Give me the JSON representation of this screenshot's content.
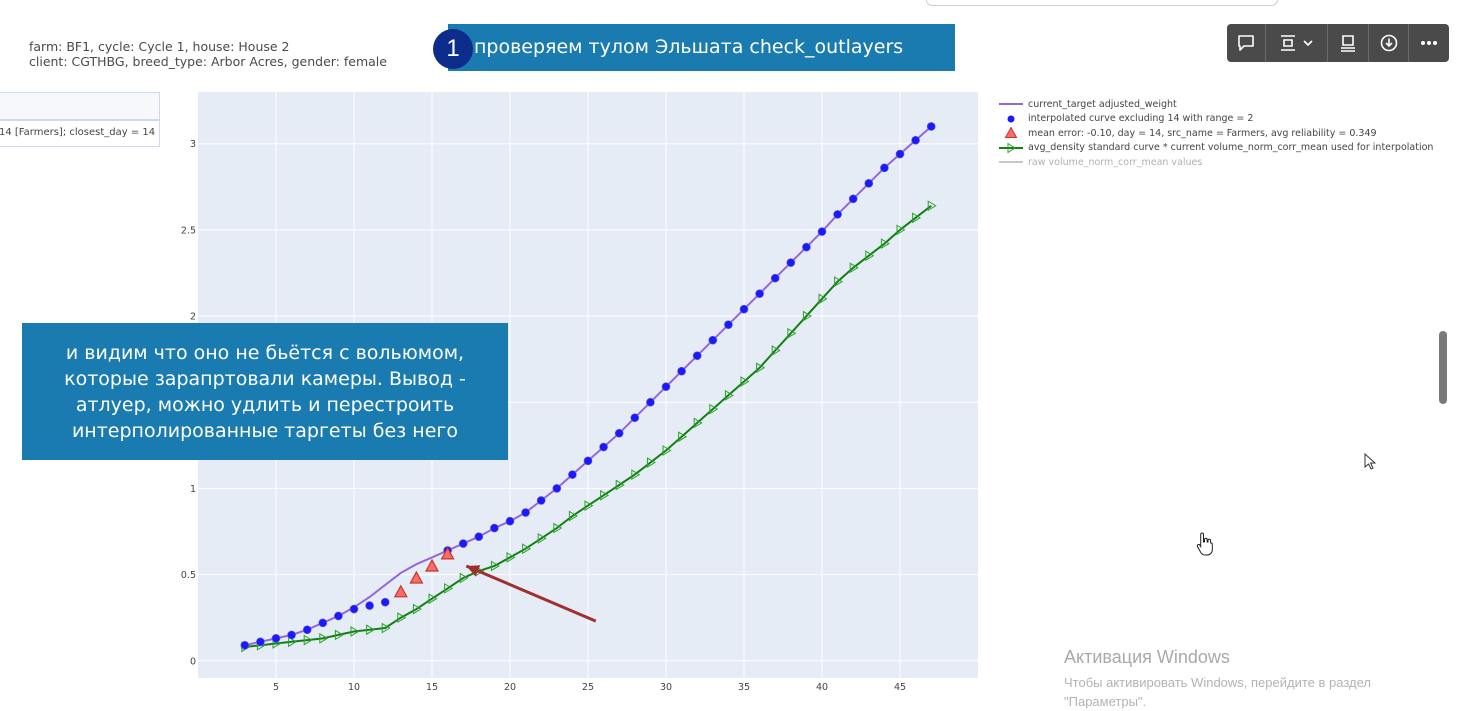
{
  "info": {
    "line1": "farm: BF1, cycle: Cycle 1, house: House 2",
    "line2": "client: CGTHBG, breed_type: Arbor Acres, gender: female"
  },
  "side_panel": {
    "box2_text": "14 [Farmers]; closest_day = 14"
  },
  "callouts": {
    "step_number": "1",
    "top_text": "проверяем тулом Эльшата check_outlayers",
    "middle_text": "и видим что оно не бьётся с вольюмом,\nкоторые зарапртовали камеры. Вывод -\nатлуер, можно удлить и перестроить\nинтерполированные таргеты без него"
  },
  "toolbar": {
    "icons": [
      "comment-icon",
      "layout-icon",
      "chevron-down-icon",
      "screen-icon",
      "download-icon",
      "more-icon"
    ]
  },
  "watermark": {
    "title": "Активация Windows",
    "text": "Чтобы активировать Windows, перейдите в раздел\n\"Параметры\"."
  },
  "colors": {
    "plot_bg": "#e5ecf6",
    "target_line": "#9467db",
    "interp_points": "#1a1aff",
    "mean_error": "#ff3b3b",
    "density_line": "#128012",
    "raw_line": "#c8c8c8",
    "callout_bg": "#1a7bb0",
    "arrow": "#a03030"
  },
  "chart_data": {
    "type": "line",
    "xlim": [
      0,
      50
    ],
    "ylim": [
      -0.1,
      3.3
    ],
    "xticks": [
      5,
      10,
      15,
      20,
      25,
      30,
      35,
      40,
      45
    ],
    "yticks": [
      0,
      0.5,
      1,
      1.5,
      2,
      2.5,
      3
    ],
    "ytick_labels": [
      "0",
      "0.5",
      "1",
      "",
      "2",
      "2.5",
      "3"
    ],
    "grid": true,
    "legend_position": "right",
    "series": [
      {
        "name": "current_target adjusted_weight",
        "kind": "line",
        "x": [
          3,
          4,
          5,
          6,
          7,
          8,
          9,
          10,
          11,
          12,
          13,
          14,
          15,
          16,
          17,
          18,
          19,
          20,
          21,
          22,
          23,
          24,
          25,
          26,
          27,
          28,
          29,
          30,
          31,
          32,
          33,
          34,
          35,
          36,
          37,
          38,
          39,
          40,
          41,
          42,
          43,
          44,
          45,
          46,
          47
        ],
        "y": [
          0.09,
          0.11,
          0.13,
          0.15,
          0.18,
          0.22,
          0.26,
          0.31,
          0.37,
          0.44,
          0.51,
          0.56,
          0.6,
          0.64,
          0.68,
          0.72,
          0.77,
          0.81,
          0.86,
          0.93,
          1.0,
          1.08,
          1.16,
          1.24,
          1.32,
          1.41,
          1.5,
          1.59,
          1.68,
          1.77,
          1.86,
          1.95,
          2.04,
          2.13,
          2.22,
          2.31,
          2.4,
          2.49,
          2.59,
          2.68,
          2.77,
          2.86,
          2.94,
          3.02,
          3.1
        ]
      },
      {
        "name": "interpolated curve excluding 14 with range = 2",
        "kind": "markers",
        "x": [
          3,
          4,
          5,
          6,
          7,
          8,
          9,
          10,
          11,
          12,
          16,
          17,
          18,
          19,
          20,
          21,
          22,
          23,
          24,
          25,
          26,
          27,
          28,
          29,
          30,
          31,
          32,
          33,
          34,
          35,
          36,
          37,
          38,
          39,
          40,
          41,
          42,
          43,
          44,
          45,
          46,
          47
        ],
        "y": [
          0.09,
          0.11,
          0.13,
          0.15,
          0.18,
          0.22,
          0.26,
          0.3,
          0.32,
          0.34,
          0.64,
          0.68,
          0.72,
          0.77,
          0.81,
          0.86,
          0.93,
          1.0,
          1.08,
          1.16,
          1.24,
          1.32,
          1.41,
          1.5,
          1.59,
          1.68,
          1.77,
          1.86,
          1.95,
          2.04,
          2.13,
          2.22,
          2.31,
          2.4,
          2.49,
          2.59,
          2.68,
          2.77,
          2.86,
          2.94,
          3.02,
          3.1
        ]
      },
      {
        "name": "mean error: -0.10, day = 14, src_name = Farmers, avg reliability = 0.349",
        "kind": "triangles",
        "x": [
          13,
          14,
          15,
          16
        ],
        "y": [
          0.4,
          0.48,
          0.55,
          0.62
        ]
      },
      {
        "name": "avg_density standard curve * current volume_norm_corr_mean used for interpolation",
        "kind": "line-triangles",
        "x": [
          3,
          4,
          5,
          6,
          7,
          8,
          9,
          10,
          11,
          12,
          13,
          14,
          15,
          16,
          17,
          18,
          19,
          20,
          21,
          22,
          23,
          24,
          25,
          26,
          27,
          28,
          29,
          30,
          31,
          32,
          33,
          34,
          35,
          36,
          37,
          38,
          39,
          40,
          41,
          42,
          43,
          44,
          45,
          46,
          47
        ],
        "y": [
          0.08,
          0.09,
          0.1,
          0.11,
          0.12,
          0.13,
          0.15,
          0.17,
          0.18,
          0.19,
          0.25,
          0.3,
          0.36,
          0.42,
          0.48,
          0.52,
          0.55,
          0.6,
          0.65,
          0.71,
          0.77,
          0.84,
          0.9,
          0.96,
          1.02,
          1.08,
          1.15,
          1.22,
          1.3,
          1.38,
          1.46,
          1.54,
          1.62,
          1.7,
          1.8,
          1.9,
          2.0,
          2.1,
          2.2,
          2.28,
          2.35,
          2.42,
          2.5,
          2.57,
          2.64
        ]
      },
      {
        "name": "raw volume_norm_corr_mean values",
        "kind": "legend-only",
        "x": [],
        "y": []
      }
    ],
    "annotation_arrow": {
      "from": [
        25.5,
        0.23
      ],
      "to": [
        17.2,
        0.55
      ]
    }
  }
}
